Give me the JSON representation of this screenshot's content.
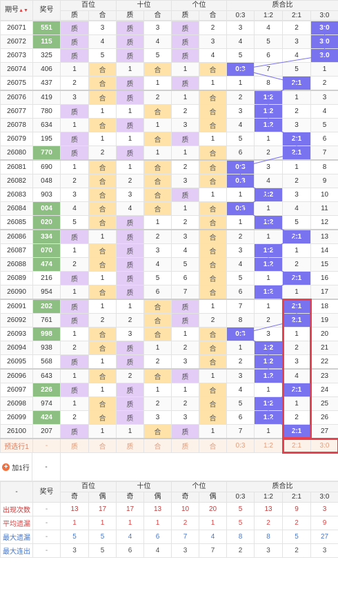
{
  "header": {
    "period": "期号",
    "lottery": "奖号",
    "groups": [
      "百位",
      "十位",
      "个位",
      "质合比"
    ],
    "sub": [
      "质",
      "合",
      "质",
      "合",
      "质",
      "合",
      "0:3",
      "1:2",
      "2:1",
      "3:0"
    ]
  },
  "rows": [
    {
      "p": "26071",
      "n": "551",
      "a": [
        "质",
        "3"
      ],
      "b": [
        "质",
        "3"
      ],
      "c": [
        "质",
        "2"
      ],
      "r": [
        "3",
        "4",
        "2",
        "3:0"
      ]
    },
    {
      "p": "26072",
      "n": "115",
      "a": [
        "质",
        "4"
      ],
      "b": [
        "质",
        "4"
      ],
      "c": [
        "质",
        "3"
      ],
      "r": [
        "4",
        "5",
        "3",
        "3:0"
      ]
    },
    {
      "p": "26073",
      "n": "325",
      "a": [
        "质",
        "5"
      ],
      "b": [
        "质",
        "5"
      ],
      "c": [
        "质",
        "4"
      ],
      "r": [
        "5",
        "6",
        "4",
        "3:0"
      ]
    },
    {
      "p": "26074",
      "n": "406",
      "a": [
        "1",
        "合"
      ],
      "b": [
        "1",
        "合"
      ],
      "c": [
        "1",
        "合"
      ],
      "r": [
        "0:3",
        "7",
        "5",
        "1"
      ]
    },
    {
      "p": "26075",
      "n": "437",
      "a": [
        "2",
        "合"
      ],
      "b": [
        "质",
        "1"
      ],
      "c": [
        "质",
        "1"
      ],
      "r": [
        "1",
        "8",
        "2:1",
        "2"
      ]
    },
    {
      "p": "26076",
      "n": "419",
      "a": [
        "3",
        "合"
      ],
      "b": [
        "质",
        "2"
      ],
      "c": [
        "1",
        "合"
      ],
      "r": [
        "2",
        "1:2",
        "1",
        "3"
      ]
    },
    {
      "p": "26077",
      "n": "780",
      "a": [
        "质",
        "1"
      ],
      "b": [
        "1",
        "合"
      ],
      "c": [
        "2",
        "合"
      ],
      "r": [
        "3",
        "1:2",
        "2",
        "4"
      ]
    },
    {
      "p": "26078",
      "n": "634",
      "a": [
        "1",
        "合"
      ],
      "b": [
        "质",
        "1"
      ],
      "c": [
        "3",
        "合"
      ],
      "r": [
        "4",
        "1:2",
        "3",
        "5"
      ]
    },
    {
      "p": "26079",
      "n": "195",
      "a": [
        "质",
        "1"
      ],
      "b": [
        "1",
        "合"
      ],
      "c": [
        "质",
        "1"
      ],
      "r": [
        "5",
        "1",
        "2:1",
        "6"
      ]
    },
    {
      "p": "26080",
      "n": "770",
      "a": [
        "质",
        "2"
      ],
      "b": [
        "质",
        "1"
      ],
      "c": [
        "1",
        "合"
      ],
      "r": [
        "6",
        "2",
        "2:1",
        "7"
      ]
    },
    {
      "p": "26081",
      "n": "690",
      "a": [
        "1",
        "合"
      ],
      "b": [
        "1",
        "合"
      ],
      "c": [
        "2",
        "合"
      ],
      "r": [
        "0:3",
        "3",
        "1",
        "8"
      ]
    },
    {
      "p": "26082",
      "n": "048",
      "a": [
        "2",
        "合"
      ],
      "b": [
        "2",
        "合"
      ],
      "c": [
        "3",
        "合"
      ],
      "r": [
        "0:3",
        "4",
        "2",
        "9"
      ]
    },
    {
      "p": "26083",
      "n": "903",
      "a": [
        "3",
        "合"
      ],
      "b": [
        "3",
        "合"
      ],
      "c": [
        "质",
        "1"
      ],
      "r": [
        "1",
        "1:2",
        "3",
        "10"
      ]
    },
    {
      "p": "26084",
      "n": "004",
      "a": [
        "4",
        "合"
      ],
      "b": [
        "4",
        "合"
      ],
      "c": [
        "1",
        "合"
      ],
      "r": [
        "0:3",
        "1",
        "4",
        "11"
      ]
    },
    {
      "p": "26085",
      "n": "020",
      "a": [
        "5",
        "合"
      ],
      "b": [
        "质",
        "1"
      ],
      "c": [
        "2",
        "合"
      ],
      "r": [
        "1",
        "1:2",
        "5",
        "12"
      ]
    },
    {
      "p": "26086",
      "n": "334",
      "a": [
        "质",
        "1"
      ],
      "b": [
        "质",
        "2"
      ],
      "c": [
        "3",
        "合"
      ],
      "r": [
        "2",
        "1",
        "2:1",
        "13"
      ]
    },
    {
      "p": "26087",
      "n": "070",
      "a": [
        "1",
        "合"
      ],
      "b": [
        "质",
        "3"
      ],
      "c": [
        "4",
        "合"
      ],
      "r": [
        "3",
        "1:2",
        "1",
        "14"
      ]
    },
    {
      "p": "26088",
      "n": "474",
      "a": [
        "2",
        "合"
      ],
      "b": [
        "质",
        "4"
      ],
      "c": [
        "5",
        "合"
      ],
      "r": [
        "4",
        "1:2",
        "2",
        "15"
      ]
    },
    {
      "p": "26089",
      "n": "216",
      "a": [
        "质",
        "1"
      ],
      "b": [
        "质",
        "5"
      ],
      "c": [
        "6",
        "合"
      ],
      "r": [
        "5",
        "1",
        "2:1",
        "16"
      ]
    },
    {
      "p": "26090",
      "n": "954",
      "a": [
        "1",
        "合"
      ],
      "b": [
        "质",
        "6"
      ],
      "c": [
        "7",
        "合"
      ],
      "r": [
        "6",
        "1:2",
        "1",
        "17"
      ]
    },
    {
      "p": "26091",
      "n": "202",
      "a": [
        "质",
        "1"
      ],
      "b": [
        "1",
        "合"
      ],
      "c": [
        "质",
        "1"
      ],
      "r": [
        "7",
        "1",
        "2:1",
        "18"
      ]
    },
    {
      "p": "26092",
      "n": "761",
      "a": [
        "质",
        "2"
      ],
      "b": [
        "2",
        "合"
      ],
      "c": [
        "质",
        "2"
      ],
      "r": [
        "8",
        "2",
        "2:1",
        "19"
      ]
    },
    {
      "p": "26093",
      "n": "998",
      "a": [
        "1",
        "合"
      ],
      "b": [
        "3",
        "合"
      ],
      "c": [
        "1",
        "合"
      ],
      "r": [
        "0:3",
        "3",
        "1",
        "20"
      ]
    },
    {
      "p": "26094",
      "n": "938",
      "a": [
        "2",
        "合"
      ],
      "b": [
        "质",
        "1"
      ],
      "c": [
        "2",
        "合"
      ],
      "r": [
        "1",
        "1:2",
        "2",
        "21"
      ]
    },
    {
      "p": "26095",
      "n": "568",
      "a": [
        "质",
        "1"
      ],
      "b": [
        "质",
        "2"
      ],
      "c": [
        "3",
        "合"
      ],
      "r": [
        "2",
        "1:2",
        "3",
        "22"
      ]
    },
    {
      "p": "26096",
      "n": "643",
      "a": [
        "1",
        "合"
      ],
      "b": [
        "2",
        "合"
      ],
      "c": [
        "质",
        "1"
      ],
      "r": [
        "3",
        "1:2",
        "4",
        "23"
      ]
    },
    {
      "p": "26097",
      "n": "226",
      "a": [
        "质",
        "1"
      ],
      "b": [
        "质",
        "1"
      ],
      "c": [
        "1",
        "合"
      ],
      "r": [
        "4",
        "1",
        "2:1",
        "24"
      ]
    },
    {
      "p": "26098",
      "n": "974",
      "a": [
        "1",
        "合"
      ],
      "b": [
        "质",
        "2"
      ],
      "c": [
        "2",
        "合"
      ],
      "r": [
        "5",
        "1:2",
        "1",
        "25"
      ]
    },
    {
      "p": "26099",
      "n": "424",
      "a": [
        "2",
        "合"
      ],
      "b": [
        "质",
        "3"
      ],
      "c": [
        "3",
        "合"
      ],
      "r": [
        "6",
        "1:2",
        "2",
        "26"
      ]
    },
    {
      "p": "26100",
      "n": "207",
      "a": [
        "质",
        "1"
      ],
      "b": [
        "1",
        "合"
      ],
      "c": [
        "质",
        "1"
      ],
      "r": [
        "7",
        "1",
        "2:1",
        "27"
      ]
    }
  ],
  "predict": {
    "label": "预选行1",
    "cells": [
      "-",
      "质",
      "合",
      "质",
      "合",
      "质",
      "合",
      "0:3",
      "1:2",
      "2:1",
      "3:0"
    ]
  },
  "add_row": {
    "label": "加1行",
    "dash": "-"
  },
  "stats": {
    "corner": "-",
    "lottery": "奖号",
    "groups": [
      "百位",
      "十位",
      "个位",
      "质合比"
    ],
    "sub": [
      "奇",
      "偶",
      "奇",
      "偶",
      "奇",
      "偶",
      "0:3",
      "1:2",
      "2:1",
      "3:0"
    ],
    "rows": [
      {
        "label": "出现次数",
        "dash": "-",
        "v": [
          "13",
          "17",
          "17",
          "13",
          "10",
          "20",
          "5",
          "13",
          "9",
          "3"
        ]
      },
      {
        "label": "平均遗漏",
        "dash": "-",
        "v": [
          "1",
          "1",
          "1",
          "1",
          "2",
          "1",
          "5",
          "2",
          "2",
          "9"
        ]
      },
      {
        "label": "最大遗漏",
        "dash": "-",
        "v": [
          "5",
          "5",
          "4",
          "6",
          "7",
          "4",
          "8",
          "8",
          "5",
          "27"
        ]
      },
      {
        "label": "最大连出",
        "dash": "-",
        "v": [
          "3",
          "5",
          "6",
          "4",
          "3",
          "7",
          "2",
          "3",
          "2",
          "3"
        ]
      }
    ]
  },
  "colors": {
    "lot": "#8dbf82",
    "zhi": "#e3ccf6",
    "he": "#ffe2a8",
    "ratio": "#7a73ef",
    "highlight": "#e8404c"
  }
}
